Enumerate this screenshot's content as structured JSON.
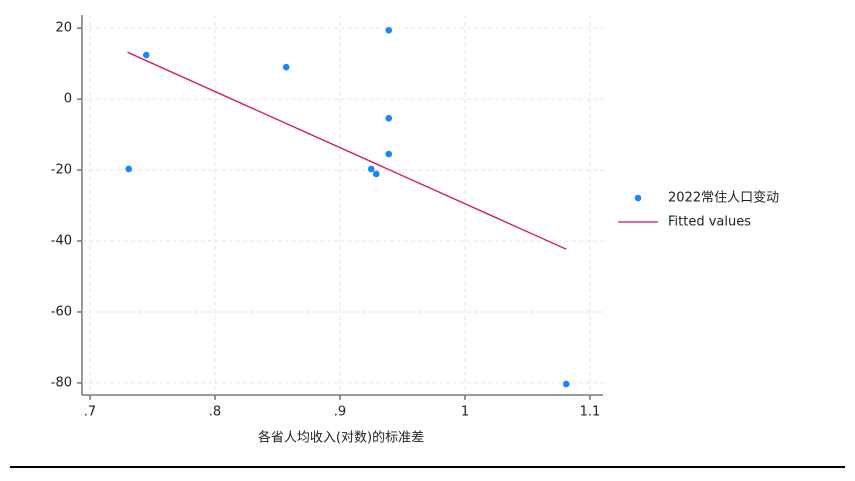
{
  "chart_data": {
    "type": "scatter",
    "x_label": "各省人均收入(对数)的标准差",
    "xlim": [
      0.6936,
      1.1104
    ],
    "ylim": [
      -83.4,
      23.7
    ],
    "xticks": [
      {
        "value": 0.7,
        "label": ".7"
      },
      {
        "value": 0.8,
        "label": ".8"
      },
      {
        "value": 0.9,
        "label": ".9"
      },
      1,
      {
        "value": 1.1,
        "label": "1.1"
      }
    ],
    "yticks": [
      20,
      0,
      -20,
      -40,
      -60,
      -80
    ],
    "grid": true,
    "series": [
      {
        "name": "2022常住人口变动",
        "type": "scatter",
        "color": "#1a85ff",
        "x": [
          0.731,
          0.745,
          0.857,
          0.939,
          0.939,
          0.939,
          0.925,
          0.929,
          1.081
        ],
        "values": [
          -19.7,
          12.4,
          9.0,
          19.4,
          -5.4,
          -15.5,
          -19.7,
          -21.1,
          -80.3
        ]
      },
      {
        "name": "Fitted values",
        "type": "line",
        "color": "#d41159",
        "x": [
          0.73,
          1.081
        ],
        "values": [
          13.2,
          -42.3
        ]
      }
    ]
  }
}
